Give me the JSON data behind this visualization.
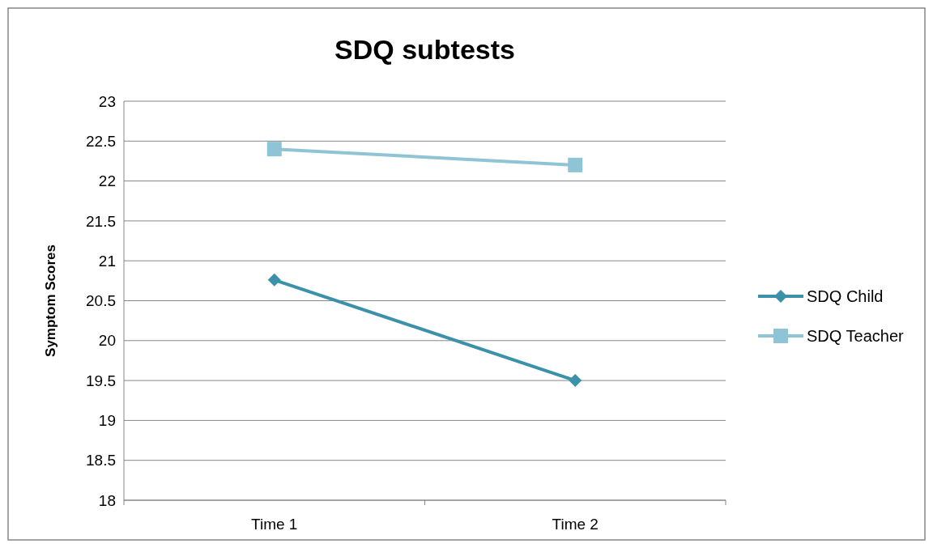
{
  "chart_data": {
    "type": "line",
    "title": "SDQ subtests",
    "ylabel": "Symptom Scores",
    "categories": [
      "Time 1",
      "Time 2"
    ],
    "series": [
      {
        "name": "SDQ Child",
        "color": "#3a91a9",
        "values": [
          20.76,
          19.5
        ],
        "marker": "diamond"
      },
      {
        "name": "SDQ Teacher",
        "color": "#8ec4d5",
        "values": [
          22.4,
          22.2
        ],
        "marker": "square"
      }
    ],
    "ylim": [
      18,
      23
    ],
    "yticks": [
      18,
      18.5,
      19,
      19.5,
      20,
      20.5,
      21,
      21.5,
      22,
      22.5,
      23
    ],
    "grid": "y",
    "legend": "right",
    "line_style": "solid"
  }
}
